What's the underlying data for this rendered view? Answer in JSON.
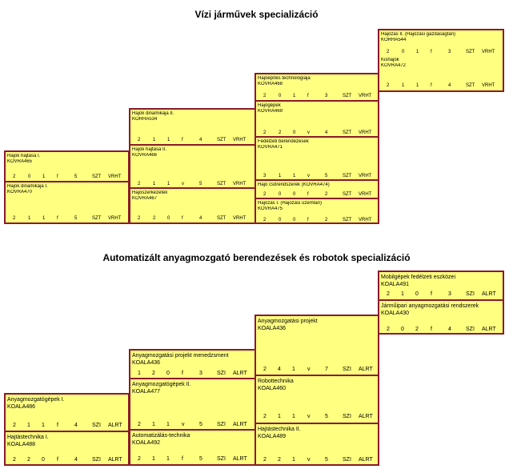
{
  "section1": {
    "title": "Vízi járművek specializáció",
    "columns": [
      {
        "courses": [
          {
            "name": "Hajók hajtása I.",
            "code": "KOVRA465",
            "row": [
              "2",
              "0",
              "1",
              "f",
              "5",
              "SZT",
              "VRHT"
            ]
          },
          {
            "name": "Hajók dinamikája I.",
            "code": "KOVRA470",
            "row": [
              "2",
              "1",
              "1",
              "f",
              "5",
              "SZT",
              "VRHT"
            ]
          }
        ]
      },
      {
        "courses": [
          {
            "name": "Hajók dinamikája II.",
            "code": "KORHA534",
            "row": [
              "2",
              "1",
              "1",
              "f",
              "4",
              "SZT",
              "VRHT"
            ]
          },
          {
            "name": "Hajók hajtása II.",
            "code": "KOVRA466",
            "row": [
              "2",
              "1",
              "1",
              "v",
              "5",
              "SZT",
              "VRHT"
            ]
          },
          {
            "name": "Hajószerkezetek",
            "code": "KOVRA467",
            "row": [
              "2",
              "2",
              "0",
              "f",
              "4",
              "SZT",
              "VRHT"
            ]
          }
        ]
      },
      {
        "courses": [
          {
            "name": "Hajóépítés technológiája",
            "code": "KOVRA468",
            "row": [
              "2",
              "0",
              "1",
              "f",
              "3",
              "SZT",
              "VRHT"
            ]
          },
          {
            "name": "Hajógépek",
            "code": "KOVRA469",
            "row": [
              "2",
              "2",
              "0",
              "v",
              "4",
              "SZT",
              "VRHT"
            ]
          },
          {
            "name": "Fedélzeti berendezések",
            "code": "KOVRA471",
            "row": [
              "3",
              "1",
              "1",
              "v",
              "5",
              "SZT",
              "VRHT"
            ]
          },
          {
            "name": "Hajó csőrendszerek (KOVRA474)",
            "code": "",
            "row": [
              "2",
              "0",
              "0",
              "f",
              "2",
              "SZT",
              "VRHT"
            ]
          },
          {
            "name": "Hajózás I. (Hajózási üzemtan)",
            "code": "KOVRA475",
            "row": [
              "2",
              "0",
              "0",
              "f",
              "2",
              "SZT",
              "VRHT"
            ]
          }
        ]
      },
      {
        "courses": [
          {
            "name": "Hajózás II. (Hajózási gazdaságtan)",
            "code": "KORHA544",
            "row": [
              "2",
              "0",
              "1",
              "f",
              "3",
              "SZT",
              "VRHT"
            ]
          },
          {
            "name": "Kishajók",
            "code": "KOVRA472",
            "row": [
              "2",
              "1",
              "1",
              "f",
              "4",
              "SZT",
              "VRHT"
            ]
          }
        ]
      }
    ]
  },
  "section2": {
    "title": "Automatizált anyagmozgató berendezések és robotok specializáció",
    "columns": [
      {
        "courses": [
          {
            "name": "Anyagmozgatógépek I.",
            "code": "KOALA486",
            "row": [
              "2",
              "1",
              "1",
              "f",
              "4",
              "SZI",
              "ALRT"
            ]
          },
          {
            "name": "Hajtástechnika I.",
            "code": "KOALA488",
            "row": [
              "2",
              "2",
              "0",
              "f",
              "4",
              "SZI",
              "ALRT"
            ]
          }
        ]
      },
      {
        "courses": [
          {
            "name": "Anyagmozgatási projekt menedzsment",
            "code": "KOALA436",
            "row": [
              "1",
              "2",
              "0",
              "f",
              "3",
              "SZI",
              "ALRT"
            ]
          },
          {
            "name": "Anyagmozgatógépek II.",
            "code": "KOALA477",
            "row": [
              "2",
              "1",
              "1",
              "v",
              "5",
              "SZI",
              "ALRT"
            ]
          },
          {
            "name": "Automatizálás-technika",
            "code": "KOALA492",
            "row": [
              "2",
              "1",
              "1",
              "f",
              "5",
              "SZI",
              "ALRT"
            ]
          }
        ]
      },
      {
        "courses": [
          {
            "name": "Anyagmozgatási projekt",
            "code": "KOALA436",
            "row": [
              "2",
              "4",
              "1",
              "v",
              "7",
              "SZI",
              "ALRT"
            ]
          },
          {
            "name": "Robottechnika",
            "code": "KOALA460",
            "row": [
              "2",
              "1",
              "1",
              "v",
              "5",
              "SZI",
              "ALRT"
            ]
          },
          {
            "name": "Hajtástechnika II.",
            "code": "KOALA489",
            "row": [
              "2",
              "2",
              "1",
              "v",
              "5",
              "SZI",
              "ALRT"
            ]
          }
        ]
      },
      {
        "courses": [
          {
            "name": "Mobilgépek fedélzeti eszközei",
            "code": "KOALA491",
            "row": [
              "2",
              "1",
              "0",
              "f",
              "3",
              "SZI",
              "ALRT"
            ]
          },
          {
            "name": "Járműipari anyagmozgatási rendszerek",
            "code": "KOALA430",
            "row": [
              "2",
              "0",
              "2",
              "f",
              "4",
              "SZI",
              "ALRT"
            ]
          }
        ]
      }
    ]
  }
}
